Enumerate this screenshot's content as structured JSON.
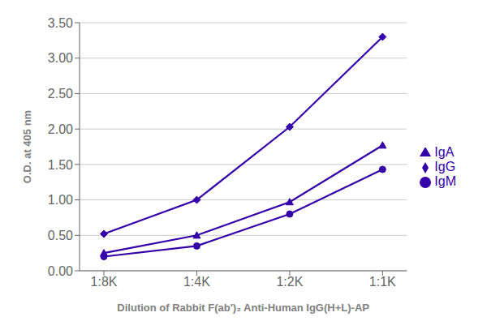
{
  "chart_data": {
    "type": "line",
    "categories": [
      "1:8K",
      "1:4K",
      "1:2K",
      "1:1K"
    ],
    "series": [
      {
        "name": "IgG",
        "color": "#3300aa",
        "marker": "diamond",
        "values": [
          0.52,
          1.0,
          2.03,
          3.3
        ]
      },
      {
        "name": "IgM",
        "color": "#3300aa",
        "marker": "circle",
        "values": [
          0.2,
          0.35,
          0.8,
          1.43
        ]
      },
      {
        "name": "IgA",
        "color": "#3300aa",
        "marker": "triangle",
        "values": [
          0.25,
          0.5,
          0.97,
          1.77
        ]
      }
    ],
    "xlabel": "Dilution of Rabbit F(ab')₂ Anti-Human IgG(H+L)-AP",
    "ylabel": "O.D. at 405 nm",
    "ylim": [
      0.0,
      3.5
    ],
    "yticks": [
      {
        "value": 0,
        "label": "0.00"
      },
      {
        "value": 0.5,
        "label": "0.50"
      },
      {
        "value": 1,
        "label": "1.00"
      },
      {
        "value": 1.5,
        "label": "1.50"
      },
      {
        "value": 2,
        "label": "2.00"
      },
      {
        "value": 2.5,
        "label": "2.50"
      },
      {
        "value": 3,
        "label": "3.00"
      },
      {
        "value": 3.5,
        "label": "3.50"
      }
    ],
    "grid": true,
    "legend": "right"
  }
}
